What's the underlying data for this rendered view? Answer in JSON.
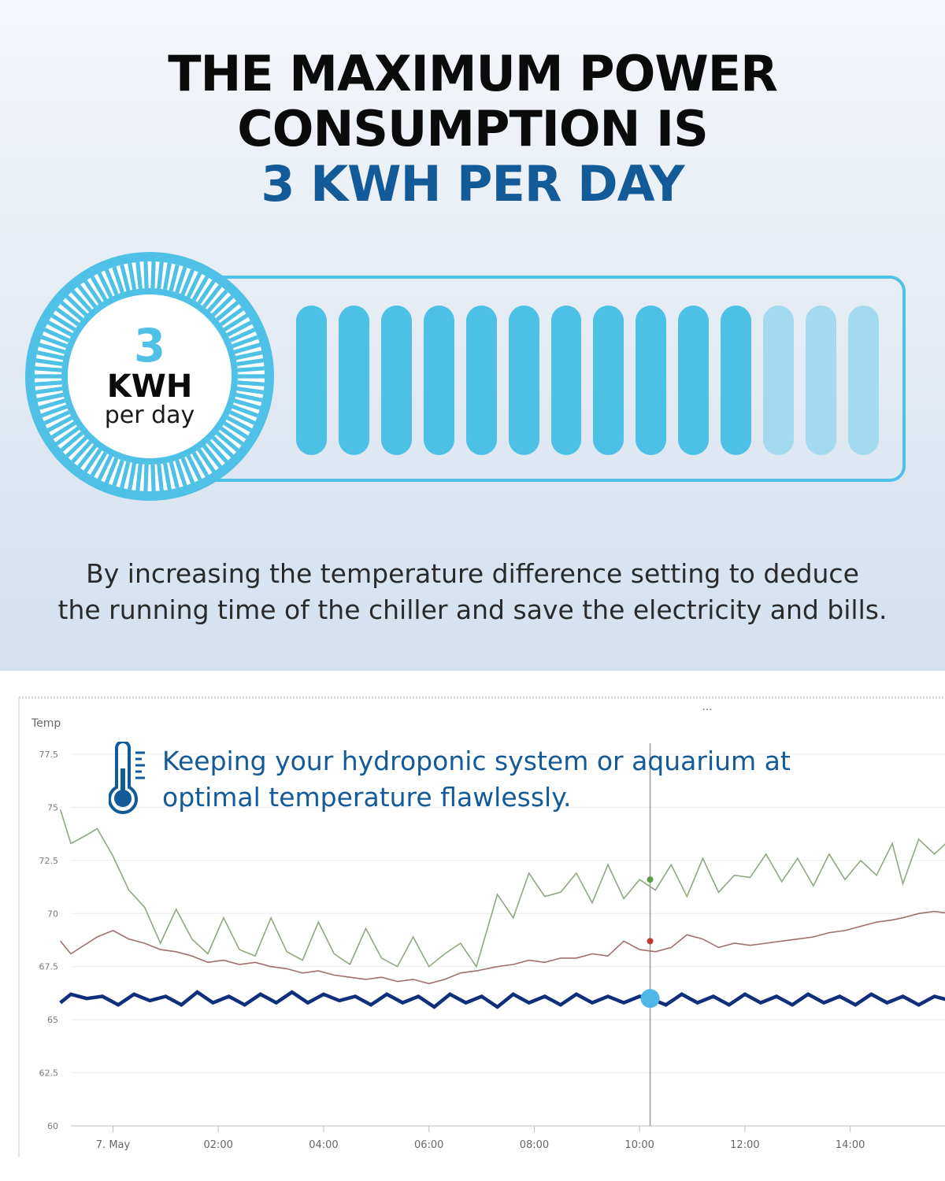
{
  "header": {
    "line1": "THE MAXIMUM POWER",
    "line2": "CONSUMPTION IS",
    "line3": "3 KWH PER DAY"
  },
  "badge": {
    "value": "3",
    "unit": "KWH",
    "sub": "per day"
  },
  "meter": {
    "total_segments": 14,
    "filled_segments": 11,
    "fill_fraction": 0.786
  },
  "description": {
    "line1": "By increasing the temperature difference setting to deduce",
    "line2": "the running time of the chiller and save the electricity and bills."
  },
  "overlay": {
    "line1": "Keeping your hydroponic system or aquarium at",
    "line2": "optimal temperature flawlessly.",
    "icon": "thermometer-icon"
  },
  "colors": {
    "accent": "#4fc0e6",
    "brand_blue": "#135a98",
    "series_water": "#0f2f7c",
    "series_upper": "#8ea982",
    "series_lower": "#a0706c"
  },
  "chart_data": {
    "type": "line",
    "ylabel": "Temp",
    "ylim": [
      60,
      77.5
    ],
    "yticks": [
      "77.5",
      "75",
      "72.5",
      "70",
      "67.5",
      "65",
      "62.5",
      "60"
    ],
    "xlim": [
      -0.8,
      15.8
    ],
    "xticks": [
      {
        "label": "7. May",
        "x": 0
      },
      {
        "label": "02:00",
        "x": 2
      },
      {
        "label": "04:00",
        "x": 4
      },
      {
        "label": "06:00",
        "x": 6
      },
      {
        "label": "08:00",
        "x": 8
      },
      {
        "label": "10:00",
        "x": 10
      },
      {
        "label": "12:00",
        "x": 12
      },
      {
        "label": "14:00",
        "x": 14
      }
    ],
    "grid": true,
    "crosshair_x": 10.2,
    "series": [
      {
        "color": "#8ea982",
        "points": [
          [
            -1,
            74.9
          ],
          [
            -0.8,
            73.3
          ],
          [
            -0.5,
            73.7
          ],
          [
            -0.3,
            74.0
          ],
          [
            0,
            72.7
          ],
          [
            0.3,
            71.1
          ],
          [
            0.6,
            70.3
          ],
          [
            0.9,
            68.6
          ],
          [
            1.2,
            70.2
          ],
          [
            1.5,
            68.8
          ],
          [
            1.8,
            68.1
          ],
          [
            2.1,
            69.8
          ],
          [
            2.4,
            68.3
          ],
          [
            2.7,
            68.0
          ],
          [
            3.0,
            69.8
          ],
          [
            3.3,
            68.2
          ],
          [
            3.6,
            67.8
          ],
          [
            3.9,
            69.6
          ],
          [
            4.2,
            68.1
          ],
          [
            4.5,
            67.6
          ],
          [
            4.8,
            69.3
          ],
          [
            5.1,
            67.9
          ],
          [
            5.4,
            67.5
          ],
          [
            5.7,
            68.9
          ],
          [
            6.0,
            67.5
          ],
          [
            6.3,
            68.1
          ],
          [
            6.6,
            68.6
          ],
          [
            6.9,
            67.5
          ],
          [
            7.3,
            70.9
          ],
          [
            7.6,
            69.8
          ],
          [
            7.9,
            71.9
          ],
          [
            8.2,
            70.8
          ],
          [
            8.5,
            71.0
          ],
          [
            8.8,
            71.9
          ],
          [
            9.1,
            70.5
          ],
          [
            9.4,
            72.3
          ],
          [
            9.7,
            70.7
          ],
          [
            10.0,
            71.6
          ],
          [
            10.3,
            71.1
          ],
          [
            10.6,
            72.3
          ],
          [
            10.9,
            70.8
          ],
          [
            11.2,
            72.6
          ],
          [
            11.5,
            71.0
          ],
          [
            11.8,
            71.8
          ],
          [
            12.1,
            71.7
          ],
          [
            12.4,
            72.8
          ],
          [
            12.7,
            71.5
          ],
          [
            13.0,
            72.6
          ],
          [
            13.3,
            71.3
          ],
          [
            13.6,
            72.8
          ],
          [
            13.9,
            71.6
          ],
          [
            14.2,
            72.5
          ],
          [
            14.5,
            71.8
          ],
          [
            14.8,
            73.3
          ],
          [
            15.0,
            71.4
          ],
          [
            15.3,
            73.5
          ],
          [
            15.6,
            72.8
          ],
          [
            15.9,
            73.5
          ]
        ]
      },
      {
        "color": "#a0706c",
        "points": [
          [
            -1,
            68.7
          ],
          [
            -0.8,
            68.1
          ],
          [
            -0.3,
            68.9
          ],
          [
            0,
            69.2
          ],
          [
            0.3,
            68.8
          ],
          [
            0.6,
            68.6
          ],
          [
            0.9,
            68.3
          ],
          [
            1.2,
            68.2
          ],
          [
            1.5,
            68.0
          ],
          [
            1.8,
            67.7
          ],
          [
            2.1,
            67.8
          ],
          [
            2.4,
            67.6
          ],
          [
            2.7,
            67.7
          ],
          [
            3.0,
            67.5
          ],
          [
            3.3,
            67.4
          ],
          [
            3.6,
            67.2
          ],
          [
            3.9,
            67.3
          ],
          [
            4.2,
            67.1
          ],
          [
            4.5,
            67.0
          ],
          [
            4.8,
            66.9
          ],
          [
            5.1,
            67.0
          ],
          [
            5.4,
            66.8
          ],
          [
            5.7,
            66.9
          ],
          [
            6.0,
            66.7
          ],
          [
            6.3,
            66.9
          ],
          [
            6.6,
            67.2
          ],
          [
            6.9,
            67.3
          ],
          [
            7.3,
            67.5
          ],
          [
            7.6,
            67.6
          ],
          [
            7.9,
            67.8
          ],
          [
            8.2,
            67.7
          ],
          [
            8.5,
            67.9
          ],
          [
            8.8,
            67.9
          ],
          [
            9.1,
            68.1
          ],
          [
            9.4,
            68.0
          ],
          [
            9.7,
            68.7
          ],
          [
            10.0,
            68.3
          ],
          [
            10.3,
            68.2
          ],
          [
            10.6,
            68.4
          ],
          [
            10.9,
            69.0
          ],
          [
            11.2,
            68.8
          ],
          [
            11.5,
            68.4
          ],
          [
            11.8,
            68.6
          ],
          [
            12.1,
            68.5
          ],
          [
            12.4,
            68.6
          ],
          [
            12.7,
            68.7
          ],
          [
            13.0,
            68.8
          ],
          [
            13.3,
            68.9
          ],
          [
            13.6,
            69.1
          ],
          [
            13.9,
            69.2
          ],
          [
            14.2,
            69.4
          ],
          [
            14.5,
            69.6
          ],
          [
            14.8,
            69.7
          ],
          [
            15.0,
            69.8
          ],
          [
            15.3,
            70.0
          ],
          [
            15.6,
            70.1
          ],
          [
            15.9,
            70.0
          ]
        ]
      },
      {
        "color": "#0f2f7c",
        "points": [
          [
            -1,
            65.8
          ],
          [
            -0.8,
            66.2
          ],
          [
            -0.5,
            66.0
          ],
          [
            -0.2,
            66.1
          ],
          [
            0.1,
            65.7
          ],
          [
            0.4,
            66.2
          ],
          [
            0.7,
            65.9
          ],
          [
            1.0,
            66.1
          ],
          [
            1.3,
            65.7
          ],
          [
            1.6,
            66.3
          ],
          [
            1.9,
            65.8
          ],
          [
            2.2,
            66.1
          ],
          [
            2.5,
            65.7
          ],
          [
            2.8,
            66.2
          ],
          [
            3.1,
            65.8
          ],
          [
            3.4,
            66.3
          ],
          [
            3.7,
            65.8
          ],
          [
            4.0,
            66.2
          ],
          [
            4.3,
            65.9
          ],
          [
            4.6,
            66.1
          ],
          [
            4.9,
            65.7
          ],
          [
            5.2,
            66.2
          ],
          [
            5.5,
            65.8
          ],
          [
            5.8,
            66.1
          ],
          [
            6.1,
            65.6
          ],
          [
            6.4,
            66.2
          ],
          [
            6.7,
            65.8
          ],
          [
            7.0,
            66.1
          ],
          [
            7.3,
            65.6
          ],
          [
            7.6,
            66.2
          ],
          [
            7.9,
            65.8
          ],
          [
            8.2,
            66.1
          ],
          [
            8.5,
            65.7
          ],
          [
            8.8,
            66.2
          ],
          [
            9.1,
            65.8
          ],
          [
            9.4,
            66.1
          ],
          [
            9.7,
            65.8
          ],
          [
            10.0,
            66.1
          ],
          [
            10.2,
            66.0
          ],
          [
            10.5,
            65.7
          ],
          [
            10.8,
            66.2
          ],
          [
            11.1,
            65.8
          ],
          [
            11.4,
            66.1
          ],
          [
            11.7,
            65.7
          ],
          [
            12.0,
            66.2
          ],
          [
            12.3,
            65.8
          ],
          [
            12.6,
            66.1
          ],
          [
            12.9,
            65.7
          ],
          [
            13.2,
            66.2
          ],
          [
            13.5,
            65.8
          ],
          [
            13.8,
            66.1
          ],
          [
            14.1,
            65.7
          ],
          [
            14.4,
            66.2
          ],
          [
            14.7,
            65.8
          ],
          [
            15.0,
            66.1
          ],
          [
            15.3,
            65.7
          ],
          [
            15.6,
            66.1
          ],
          [
            15.9,
            65.9
          ]
        ]
      }
    ],
    "markers": [
      {
        "x": 10.2,
        "y": 71.6,
        "color": "#5a9a4a"
      },
      {
        "x": 10.2,
        "y": 68.7,
        "color": "#b83a30"
      },
      {
        "x": 10.2,
        "y": 66.0,
        "color": "#4fb8e8"
      }
    ]
  }
}
